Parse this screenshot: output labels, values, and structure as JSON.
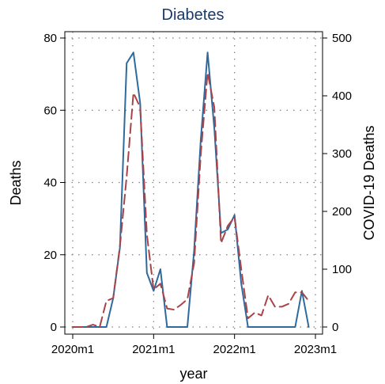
{
  "chart_data": {
    "type": "line",
    "title": "Diabetes",
    "xlabel": "year",
    "ylabel": "Deaths",
    "y2label": "COVID-19 Deaths",
    "xlim": [
      "2020m1",
      "2023m1"
    ],
    "ylim": [
      0,
      80
    ],
    "y2lim": [
      0,
      500
    ],
    "x_ticks": [
      "2020m1",
      "2021m1",
      "2022m1",
      "2023m1"
    ],
    "y_ticks": [
      "0",
      "20",
      "40",
      "60",
      "80"
    ],
    "y2_ticks": [
      "0",
      "100",
      "200",
      "300",
      "400",
      "500"
    ],
    "grid": true,
    "x": [
      "2020m1",
      "2020m2",
      "2020m3",
      "2020m4",
      "2020m5",
      "2020m6",
      "2020m7",
      "2020m8",
      "2020m9",
      "2020m10",
      "2020m11",
      "2020m12",
      "2021m1",
      "2021m2",
      "2021m3",
      "2021m4",
      "2021m5",
      "2021m6",
      "2021m7",
      "2021m8",
      "2021m9",
      "2021m10",
      "2021m11",
      "2021m12",
      "2022m1",
      "2022m2",
      "2022m3",
      "2022m4",
      "2022m5",
      "2022m6",
      "2022m7",
      "2022m8",
      "2022m9",
      "2022m10",
      "2022m11",
      "2022m12"
    ],
    "series": [
      {
        "axis": "left",
        "color": "#2f6a9e",
        "style": "solid",
        "values": [
          0,
          0,
          0,
          0,
          0,
          0,
          8,
          22,
          73,
          76,
          62,
          15,
          10,
          16,
          0,
          0,
          0,
          0,
          21,
          52,
          76,
          55,
          26,
          27,
          31,
          12,
          0,
          0,
          0,
          0,
          0,
          0,
          0,
          0,
          10,
          0
        ]
      },
      {
        "axis": "right",
        "color": "#a84448",
        "style": "dashed",
        "values": [
          0,
          0,
          0,
          4,
          0,
          45,
          50,
          140,
          260,
          405,
          380,
          160,
          65,
          75,
          32,
          30,
          38,
          48,
          110,
          300,
          440,
          380,
          145,
          175,
          190,
          100,
          15,
          25,
          20,
          55,
          35,
          35,
          40,
          60,
          60,
          45
        ]
      }
    ]
  }
}
